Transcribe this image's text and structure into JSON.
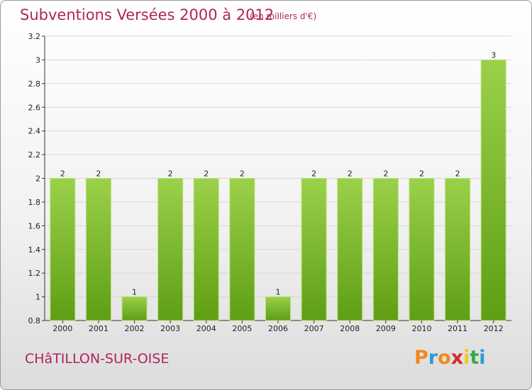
{
  "header": {
    "title": "Subventions Versées 2000 à 2012",
    "subtitle": "(en milliers d'€)"
  },
  "footer": {
    "commune": "CHâTILLON-SUR-OISE",
    "logo_text": "Proxiti",
    "logo_colors": [
      "#f08a1c",
      "#2a9ad6",
      "#f08a1c",
      "#d62a2a",
      "#f0c81c",
      "#3aa84a",
      "#2a9ad6"
    ]
  },
  "colors": {
    "title": "#b0245e",
    "bar_light": "#9bd14a",
    "bar_dark": "#5e9e14",
    "grid": "#d8d8d8"
  },
  "chart_data": {
    "type": "bar",
    "title": "Subventions Versées 2000 à 2012",
    "subtitle": "(en milliers d'€)",
    "categories": [
      "2000",
      "2001",
      "2002",
      "2003",
      "2004",
      "2005",
      "2006",
      "2007",
      "2008",
      "2009",
      "2010",
      "2011",
      "2012"
    ],
    "values": [
      2,
      2,
      1,
      2,
      2,
      2,
      1,
      2,
      2,
      2,
      2,
      2,
      3
    ],
    "value_labels": [
      "2",
      "2",
      "1",
      "2",
      "2",
      "2",
      "1",
      "2",
      "2",
      "2",
      "2",
      "2",
      "3"
    ],
    "ylim": [
      0.8,
      3.2
    ],
    "yticks": [
      0.8,
      1,
      1.2,
      1.4,
      1.6,
      1.8,
      2,
      2.2,
      2.4,
      2.6,
      2.8,
      3,
      3.2
    ],
    "ytick_labels": [
      "0.8",
      "1",
      "1.2",
      "1.4",
      "1.6",
      "1.8",
      "2",
      "2.2",
      "2.4",
      "2.6",
      "2.8",
      "3",
      "3.2"
    ],
    "grid": true,
    "xlabel": "",
    "ylabel": ""
  }
}
